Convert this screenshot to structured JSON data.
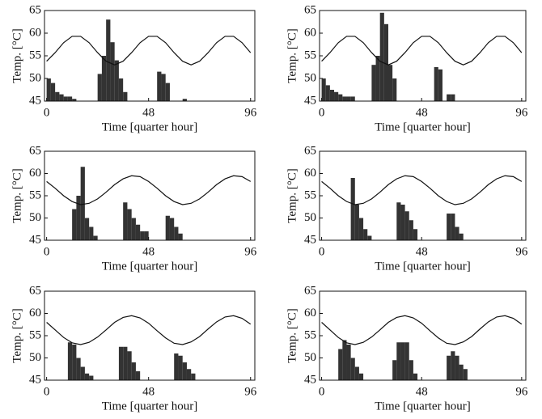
{
  "chart_data": [
    {
      "type": "line",
      "xlabel": "Time [quarter hour]",
      "ylabel": "Temp. [°C]",
      "xlim": [
        -1,
        98
      ],
      "ylim": [
        45,
        65
      ],
      "xticks": [
        0,
        48,
        96
      ],
      "yticks": [
        45,
        50,
        55,
        60,
        65
      ],
      "color": "#111111",
      "x": [
        0,
        4,
        8,
        12,
        16,
        20,
        24,
        28,
        32,
        36,
        40,
        44,
        48,
        52,
        56,
        60,
        64,
        68,
        72,
        76,
        80,
        84,
        88,
        92,
        96
      ],
      "values": [
        53.8,
        55.7,
        57.9,
        59.3,
        59.3,
        57.9,
        55.7,
        53.8,
        53.0,
        53.8,
        55.7,
        57.9,
        59.3,
        59.3,
        57.9,
        55.7,
        53.8,
        53.0,
        53.8,
        55.7,
        57.9,
        59.3,
        59.3,
        57.9,
        55.7
      ],
      "bars": {
        "color": "#333333",
        "x": [
          0,
          2,
          4,
          6,
          8,
          10,
          12,
          24,
          26,
          28,
          30,
          32,
          34,
          36,
          52,
          54,
          56,
          64
        ],
        "values": [
          50,
          49,
          47,
          46.5,
          46,
          46,
          45.5,
          51,
          55,
          63,
          58,
          54,
          50,
          47,
          51.5,
          51,
          49,
          45.5
        ]
      }
    },
    {
      "type": "line",
      "xlabel": "Time [quarter hour]",
      "ylabel": "Temp. [°C]",
      "xlim": [
        -1,
        98
      ],
      "ylim": [
        45,
        65
      ],
      "xticks": [
        0,
        48,
        96
      ],
      "yticks": [
        45,
        50,
        55,
        60,
        65
      ],
      "color": "#111111",
      "x": [
        0,
        4,
        8,
        12,
        16,
        20,
        24,
        28,
        32,
        36,
        40,
        44,
        48,
        52,
        56,
        60,
        64,
        68,
        72,
        76,
        80,
        84,
        88,
        92,
        96
      ],
      "values": [
        53.8,
        55.7,
        57.9,
        59.3,
        59.3,
        57.9,
        55.7,
        53.8,
        53.0,
        53.8,
        55.7,
        57.9,
        59.3,
        59.3,
        57.9,
        55.7,
        53.8,
        53.0,
        53.8,
        55.7,
        57.9,
        59.3,
        59.3,
        57.9,
        55.7
      ],
      "bars": {
        "color": "#333333",
        "x": [
          0,
          2,
          4,
          6,
          8,
          10,
          12,
          14,
          24,
          26,
          28,
          30,
          32,
          34,
          54,
          56,
          60,
          62
        ],
        "values": [
          50,
          48.5,
          47.5,
          47,
          46.5,
          46,
          46,
          46,
          53,
          55,
          64.5,
          62,
          53,
          50,
          52.5,
          52,
          46.5,
          46.5
        ]
      }
    },
    {
      "type": "line",
      "xlabel": "Time [quarter hour]",
      "ylabel": "Temp. [°C]",
      "xlim": [
        -1,
        98
      ],
      "ylim": [
        45,
        65
      ],
      "xticks": [
        0,
        48,
        96
      ],
      "yticks": [
        45,
        50,
        55,
        60,
        65
      ],
      "color": "#111111",
      "x": [
        0,
        4,
        8,
        12,
        16,
        20,
        24,
        28,
        32,
        36,
        40,
        44,
        48,
        52,
        56,
        60,
        64,
        68,
        72,
        76,
        80,
        84,
        88,
        92,
        96
      ],
      "values": [
        58.2,
        56.7,
        55.0,
        53.7,
        53.0,
        53.3,
        54.3,
        55.8,
        57.5,
        58.8,
        59.5,
        59.3,
        58.2,
        56.7,
        55.0,
        53.7,
        53.0,
        53.3,
        54.3,
        55.8,
        57.5,
        58.8,
        59.5,
        59.3,
        58.2
      ],
      "bars": {
        "color": "#333333",
        "x": [
          12,
          14,
          16,
          18,
          20,
          22,
          36,
          38,
          40,
          42,
          44,
          46,
          56,
          58,
          60,
          62
        ],
        "values": [
          52,
          55,
          61.5,
          50,
          48,
          46,
          53.5,
          52,
          50,
          48.5,
          47,
          47,
          50.5,
          50,
          48,
          46.5
        ]
      }
    },
    {
      "type": "line",
      "xlabel": "Time [quarter hour]",
      "ylabel": "Temp. [°C]",
      "xlim": [
        -1,
        98
      ],
      "ylim": [
        45,
        65
      ],
      "xticks": [
        0,
        48,
        96
      ],
      "yticks": [
        45,
        50,
        55,
        60,
        65
      ],
      "color": "#111111",
      "x": [
        0,
        4,
        8,
        12,
        16,
        20,
        24,
        28,
        32,
        36,
        40,
        44,
        48,
        52,
        56,
        60,
        64,
        68,
        72,
        76,
        80,
        84,
        88,
        92,
        96
      ],
      "values": [
        58.2,
        56.7,
        55.0,
        53.7,
        53.0,
        53.3,
        54.3,
        55.8,
        57.5,
        58.8,
        59.5,
        59.3,
        58.2,
        56.7,
        55.0,
        53.7,
        53.0,
        53.3,
        54.3,
        55.8,
        57.5,
        58.8,
        59.5,
        59.3,
        58.2
      ],
      "bars": {
        "color": "#333333",
        "x": [
          14,
          16,
          18,
          20,
          22,
          36,
          38,
          40,
          42,
          44,
          60,
          62,
          64,
          66
        ],
        "values": [
          59,
          53,
          50,
          47.5,
          46,
          53.5,
          53,
          51.5,
          49.5,
          47.5,
          51,
          51,
          48,
          46.5
        ]
      }
    },
    {
      "type": "line",
      "xlabel": "Time [quarter hour]",
      "ylabel": "Temp. [°C]",
      "xlim": [
        -1,
        98
      ],
      "ylim": [
        45,
        65
      ],
      "xticks": [
        0,
        48,
        96
      ],
      "yticks": [
        45,
        50,
        55,
        60,
        65
      ],
      "color": "#111111",
      "x": [
        0,
        4,
        8,
        12,
        16,
        20,
        24,
        28,
        32,
        36,
        40,
        44,
        48,
        52,
        56,
        60,
        64,
        68,
        72,
        76,
        80,
        84,
        88,
        92,
        96
      ],
      "values": [
        58.0,
        56.3,
        54.6,
        53.4,
        53.0,
        53.5,
        54.7,
        56.3,
        58.0,
        59.1,
        59.5,
        59.0,
        57.8,
        56.1,
        54.5,
        53.3,
        53.0,
        53.6,
        54.8,
        56.5,
        58.1,
        59.2,
        59.5,
        58.9,
        57.6
      ],
      "bars": {
        "color": "#333333",
        "x": [
          10,
          12,
          14,
          16,
          18,
          20,
          34,
          36,
          38,
          40,
          42,
          60,
          62,
          64,
          66,
          68
        ],
        "values": [
          53.5,
          53,
          50,
          48,
          46.5,
          46,
          52.5,
          52.5,
          51.5,
          49,
          47,
          51,
          50.5,
          49,
          47.5,
          46.5
        ]
      }
    },
    {
      "type": "line",
      "xlabel": "Time [quarter hour]",
      "ylabel": "Temp. [°C]",
      "xlim": [
        -1,
        98
      ],
      "ylim": [
        45,
        65
      ],
      "xticks": [
        0,
        48,
        96
      ],
      "yticks": [
        45,
        50,
        55,
        60,
        65
      ],
      "color": "#111111",
      "x": [
        0,
        4,
        8,
        12,
        16,
        20,
        24,
        28,
        32,
        36,
        40,
        44,
        48,
        52,
        56,
        60,
        64,
        68,
        72,
        76,
        80,
        84,
        88,
        92,
        96
      ],
      "values": [
        58.0,
        56.3,
        54.6,
        53.4,
        53.0,
        53.5,
        54.7,
        56.3,
        58.0,
        59.1,
        59.5,
        59.0,
        57.8,
        56.1,
        54.5,
        53.3,
        53.0,
        53.6,
        54.8,
        56.5,
        58.1,
        59.2,
        59.5,
        58.9,
        57.6
      ],
      "bars": {
        "color": "#333333",
        "x": [
          8,
          10,
          12,
          14,
          16,
          18,
          34,
          36,
          38,
          40,
          42,
          44,
          60,
          62,
          64,
          66,
          68
        ],
        "values": [
          52,
          54,
          53,
          50,
          48,
          46.5,
          49.5,
          53.5,
          53.5,
          53.5,
          49.5,
          46.5,
          50.5,
          51.5,
          50.5,
          48.5,
          47.5
        ]
      }
    }
  ]
}
